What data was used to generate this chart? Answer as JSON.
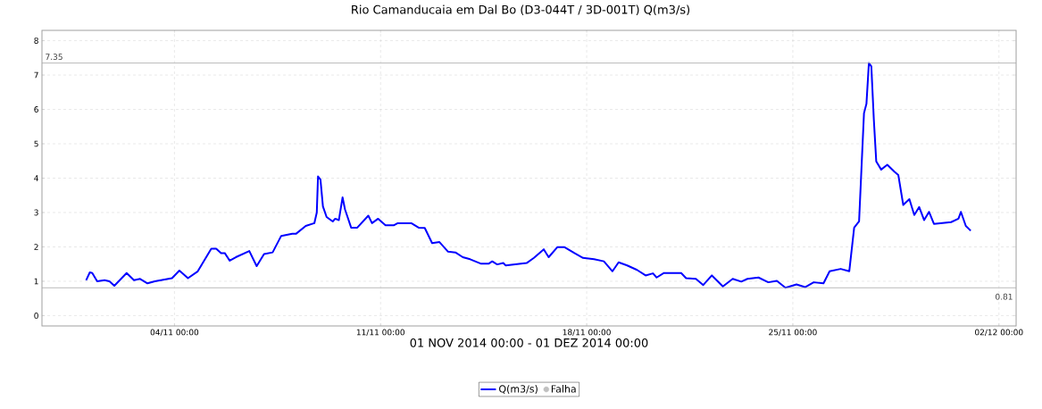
{
  "chart_data": {
    "type": "line",
    "title": "Rio Camanducaia em Dal Bo (D3-044T / 3D-001T) Q(m3/s)",
    "xlabel": "01 NOV 2014 00:00 - 01 DEZ 2014 00:00",
    "x": [
      "2014-11-01T00:00",
      "2014-11-01T03:00",
      "2014-11-01T05:00",
      "2014-11-01T09:00",
      "2014-11-01T15:00",
      "2014-11-01T19:00",
      "2014-11-01T23:00",
      "2014-11-02T09:00",
      "2014-11-02T15:00",
      "2014-11-02T20:00",
      "2014-11-03T02:00",
      "2014-11-03T08:00",
      "2014-11-03T22:00",
      "2014-11-04T04:00",
      "2014-11-04T11:00",
      "2014-11-04T19:00",
      "2014-11-05T06:00",
      "2014-11-05T10:00",
      "2014-11-05T14:00",
      "2014-11-05T17:00",
      "2014-11-05T21:00",
      "2014-11-06T02:00",
      "2014-11-06T13:00",
      "2014-11-06T19:00",
      "2014-11-07T01:00",
      "2014-11-07T08:00",
      "2014-11-07T15:00",
      "2014-11-08T00:00",
      "2014-11-08T03:00",
      "2014-11-08T11:00",
      "2014-11-08T18:00",
      "2014-11-08T20:00",
      "2014-11-08T21:00",
      "2014-11-08T23:00",
      "2014-11-09T01:00",
      "2014-11-09T04:00",
      "2014-11-09T09:00",
      "2014-11-09T11:00",
      "2014-11-09T14:00",
      "2014-11-09T17:00",
      "2014-11-09T19:00",
      "2014-11-10T00:00",
      "2014-11-10T05:00",
      "2014-11-10T14:00",
      "2014-11-10T17:00",
      "2014-11-10T22:00",
      "2014-11-11T04:00",
      "2014-11-11T11:00",
      "2014-11-11T14:00",
      "2014-11-12T01:00",
      "2014-11-12T07:00",
      "2014-11-12T12:00",
      "2014-11-12T18:00",
      "2014-11-13T00:00",
      "2014-11-13T07:00",
      "2014-11-13T13:00",
      "2014-11-13T19:00",
      "2014-11-14T01:00",
      "2014-11-14T10:00",
      "2014-11-14T16:00",
      "2014-11-14T19:00",
      "2014-11-14T23:00",
      "2014-11-15T04:00",
      "2014-11-15T06:00",
      "2014-11-15T23:00",
      "2014-11-16T05:00",
      "2014-11-16T13:00",
      "2014-11-16T17:00",
      "2014-11-17T00:00",
      "2014-11-17T06:00",
      "2014-11-17T14:00",
      "2014-11-17T21:00",
      "2014-11-18T06:00",
      "2014-11-18T14:00",
      "2014-11-18T21:00",
      "2014-11-19T02:00",
      "2014-11-19T09:00",
      "2014-11-19T17:00",
      "2014-11-20T00:00",
      "2014-11-20T06:00",
      "2014-11-20T09:00",
      "2014-11-20T15:00",
      "2014-11-21T05:00",
      "2014-11-21T09:00",
      "2014-11-21T17:00",
      "2014-11-21T23:00",
      "2014-11-22T06:00",
      "2014-11-22T15:00",
      "2014-11-22T23:00",
      "2014-11-23T06:00",
      "2014-11-23T11:00",
      "2014-11-23T20:00",
      "2014-11-24T04:00",
      "2014-11-24T11:00",
      "2014-11-24T18:00",
      "2014-11-25T03:00",
      "2014-11-25T10:00",
      "2014-11-25T17:00",
      "2014-11-26T01:00",
      "2014-11-26T06:00",
      "2014-11-26T15:00",
      "2014-11-26T22:00",
      "2014-11-27T02:00",
      "2014-11-27T06:00",
      "2014-11-27T08:00",
      "2014-11-27T10:00",
      "2014-11-27T12:00",
      "2014-11-27T14:00",
      "2014-11-27T16:00",
      "2014-11-27T18:00",
      "2014-11-27T20:00",
      "2014-11-28T00:00",
      "2014-11-28T05:00",
      "2014-11-28T11:00",
      "2014-11-28T14:00",
      "2014-11-28T18:00",
      "2014-11-28T23:00",
      "2014-11-29T03:00",
      "2014-11-29T07:00",
      "2014-11-29T11:00",
      "2014-11-29T15:00",
      "2014-11-29T19:00",
      "2014-11-30T09:00",
      "2014-11-30T15:00",
      "2014-11-30T17:00",
      "2014-11-30T21:00",
      "2014-12-01T01:00"
    ],
    "series": [
      {
        "name": "Q(m3/s)",
        "color": "#0000ff",
        "marker": "none",
        "values": [
          1.03,
          1.26,
          1.24,
          1.0,
          1.03,
          1.0,
          0.87,
          1.24,
          1.03,
          1.07,
          0.94,
          1.0,
          1.09,
          1.31,
          1.09,
          1.29,
          1.95,
          1.95,
          1.82,
          1.82,
          1.6,
          1.7,
          1.88,
          1.44,
          1.79,
          1.84,
          2.32,
          2.38,
          2.38,
          2.61,
          2.69,
          3.0,
          4.05,
          3.96,
          3.18,
          2.87,
          2.74,
          2.82,
          2.78,
          3.44,
          3.09,
          2.56,
          2.56,
          2.91,
          2.69,
          2.82,
          2.63,
          2.63,
          2.69,
          2.69,
          2.56,
          2.55,
          2.11,
          2.14,
          1.86,
          1.84,
          1.7,
          1.64,
          1.51,
          1.51,
          1.58,
          1.49,
          1.53,
          1.46,
          1.53,
          1.68,
          1.93,
          1.7,
          1.99,
          1.99,
          1.82,
          1.68,
          1.64,
          1.58,
          1.29,
          1.55,
          1.46,
          1.33,
          1.17,
          1.23,
          1.11,
          1.24,
          1.24,
          1.09,
          1.07,
          0.89,
          1.17,
          0.85,
          1.07,
          0.99,
          1.07,
          1.11,
          0.97,
          1.01,
          0.81,
          0.91,
          0.83,
          0.97,
          0.94,
          1.29,
          1.36,
          1.29,
          2.56,
          2.74,
          4.32,
          5.89,
          6.16,
          7.35,
          7.25,
          5.72,
          4.49,
          4.25,
          4.39,
          4.18,
          4.09,
          3.22,
          3.39,
          2.93,
          3.16,
          2.78,
          3.02,
          2.67,
          2.72,
          2.82,
          3.02,
          2.61,
          2.47
        ]
      },
      {
        "name": "Falha",
        "type": "scatter",
        "color": "#c0c0c0",
        "marker": "circle",
        "values": [
          null,
          null,
          null,
          null,
          null,
          null,
          null,
          null,
          null,
          null,
          null,
          null,
          null,
          null,
          null,
          null,
          null,
          null,
          null,
          null,
          null,
          null,
          null,
          null,
          null,
          null,
          null,
          null,
          null,
          null,
          null,
          null,
          null,
          null,
          null,
          null,
          null,
          null,
          null,
          null,
          null,
          null,
          null,
          null,
          null,
          null,
          null,
          null,
          null,
          null,
          null,
          null,
          null,
          null,
          null,
          null,
          null,
          null,
          null,
          null,
          null,
          null,
          null,
          null,
          null,
          null,
          null,
          null,
          null,
          null,
          null,
          null,
          null,
          null,
          null,
          null,
          null,
          null,
          null,
          null,
          null,
          null,
          null,
          null,
          null,
          null,
          null,
          null,
          null,
          null,
          null,
          null,
          null,
          null,
          null,
          null,
          null,
          null,
          null,
          null,
          null,
          null,
          null,
          null,
          null,
          null,
          null,
          null,
          null,
          null,
          null,
          null,
          null,
          null,
          null,
          null,
          null,
          null,
          null,
          null,
          null,
          null,
          null,
          null,
          null,
          null,
          null
        ]
      }
    ],
    "xlim": [
      "2014-10-30T12:00",
      "2014-12-02T14:00"
    ],
    "xticks": [
      {
        "value": "2014-11-04T00:00",
        "label": "04/11 00:00"
      },
      {
        "value": "2014-11-11T00:00",
        "label": "11/11 00:00"
      },
      {
        "value": "2014-11-18T00:00",
        "label": "18/11 00:00"
      },
      {
        "value": "2014-11-25T00:00",
        "label": "25/11 00:00"
      },
      {
        "value": "2014-12-02T00:00",
        "label": "02/12 00:00"
      }
    ],
    "ylim": [
      -0.3,
      8.3
    ],
    "yticks": [
      0,
      1,
      2,
      3,
      4,
      5,
      6,
      7,
      8
    ],
    "ref_lines": [
      {
        "axis": "y",
        "value": 7.35,
        "label": "7.35",
        "color": "#aaaaaa"
      },
      {
        "axis": "y",
        "value": 0.81,
        "label": "0.81",
        "color": "#aaaaaa"
      }
    ],
    "grid": true,
    "legend": "bottom"
  }
}
